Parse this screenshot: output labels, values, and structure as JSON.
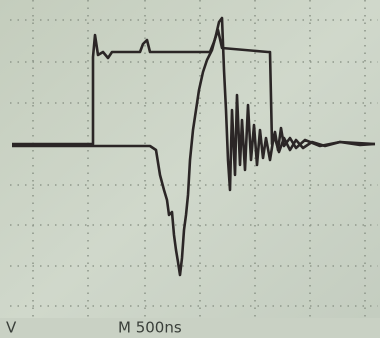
{
  "status_bar": {
    "channel_unit": "V",
    "timebase": "M 500ns"
  }
}
